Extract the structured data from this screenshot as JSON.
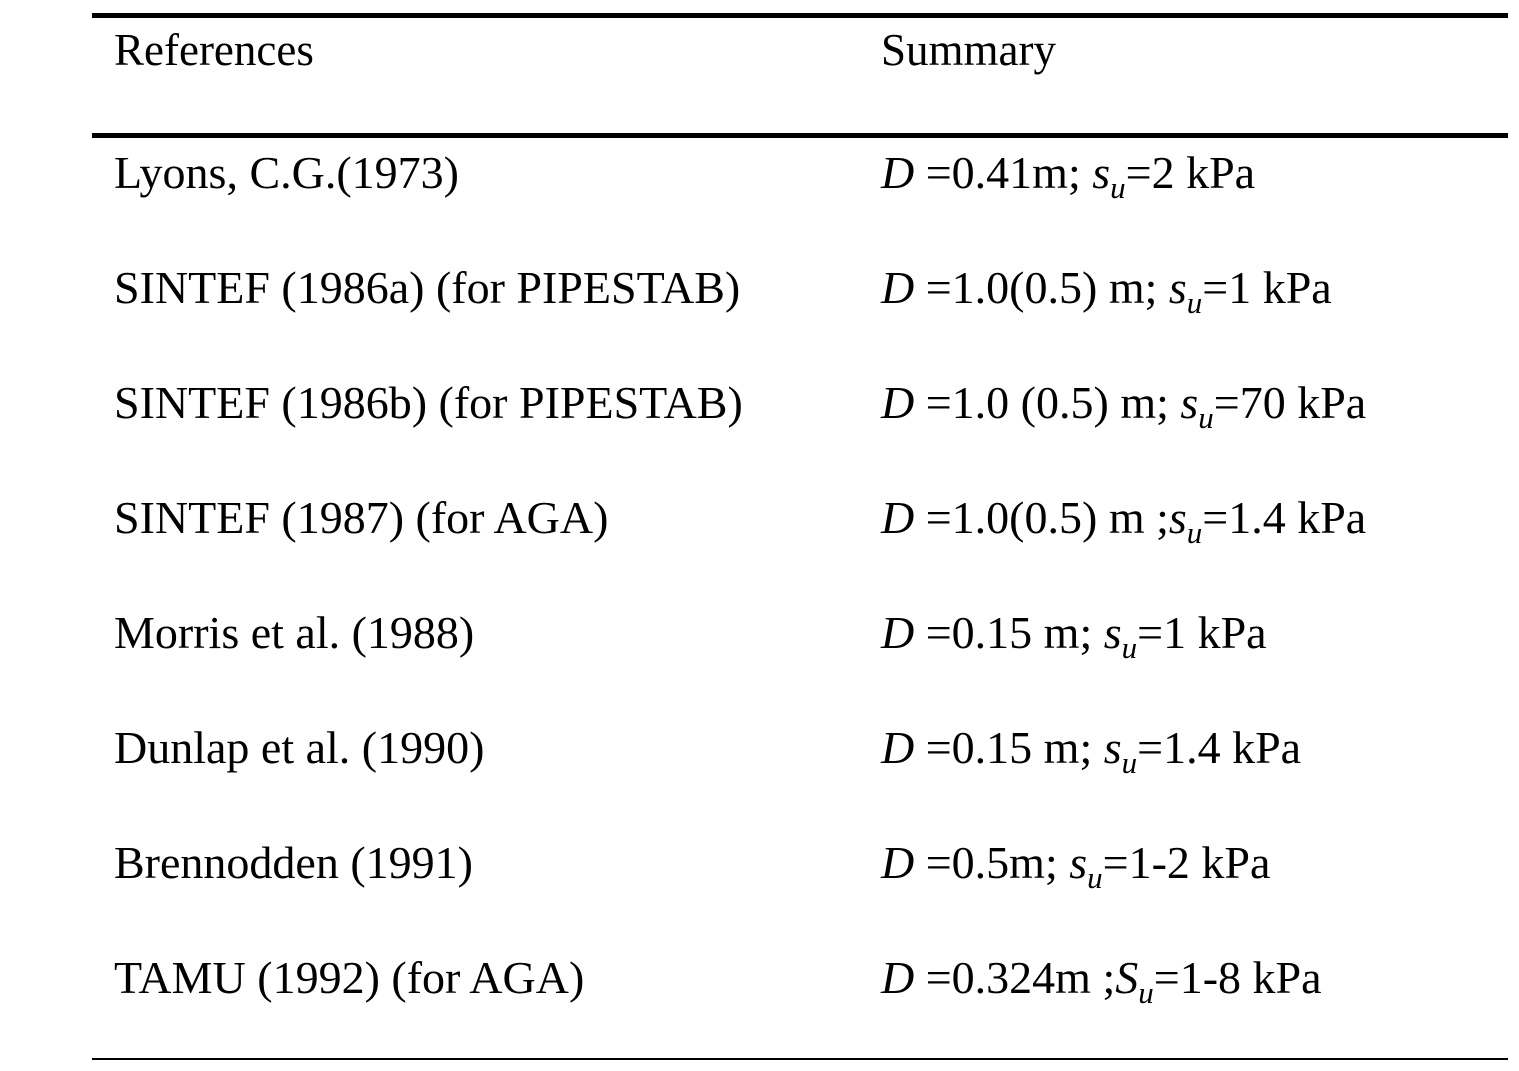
{
  "table": {
    "headers": {
      "references": "References",
      "summary": "Summary"
    },
    "rows": [
      {
        "reference": "Lyons, C.G.(1973)",
        "summary": {
          "d_symbol": "D",
          "d_text": " =0.41m; ",
          "s_symbol": "s",
          "s_sub": "u",
          "s_text": "=2 kPa"
        }
      },
      {
        "reference": "SINTEF (1986a) (for PIPESTAB)",
        "summary": {
          "d_symbol": "D",
          "d_text": " =1.0(0.5) m; ",
          "s_symbol": "s",
          "s_sub": "u",
          "s_text": "=1 kPa"
        }
      },
      {
        "reference": "SINTEF (1986b) (for PIPESTAB)",
        "summary": {
          "d_symbol": "D",
          "d_text": " =1.0 (0.5) m; ",
          "s_symbol": "s",
          "s_sub": "u",
          "s_text": "=70 kPa"
        }
      },
      {
        "reference": "SINTEF (1987) (for AGA)",
        "summary": {
          "d_symbol": "D",
          "d_text": " =1.0(0.5) m ;",
          "s_symbol": "s",
          "s_sub": "u",
          "s_text": "=1.4 kPa"
        }
      },
      {
        "reference": "Morris et al. (1988)",
        "summary": {
          "d_symbol": "D",
          "d_text": " =0.15 m; ",
          "s_symbol": "s",
          "s_sub": "u",
          "s_text": "=1 kPa"
        }
      },
      {
        "reference": "Dunlap et al. (1990)",
        "summary": {
          "d_symbol": "D",
          "d_text": " =0.15 m; ",
          "s_symbol": "s",
          "s_sub": "u",
          "s_text": "=1.4 kPa"
        }
      },
      {
        "reference": "Brennodden (1991)",
        "summary": {
          "d_symbol": "D",
          "d_text": " =0.5m; ",
          "s_symbol": "s",
          "s_sub": "u",
          "s_text": "=1-2 kPa"
        }
      },
      {
        "reference": "TAMU (1992) (for AGA)",
        "summary": {
          "d_symbol": "D",
          "d_text": " =0.324m ;",
          "s_symbol": "S",
          "s_sub": "u",
          "s_text": "=1-8 kPa"
        }
      }
    ]
  }
}
